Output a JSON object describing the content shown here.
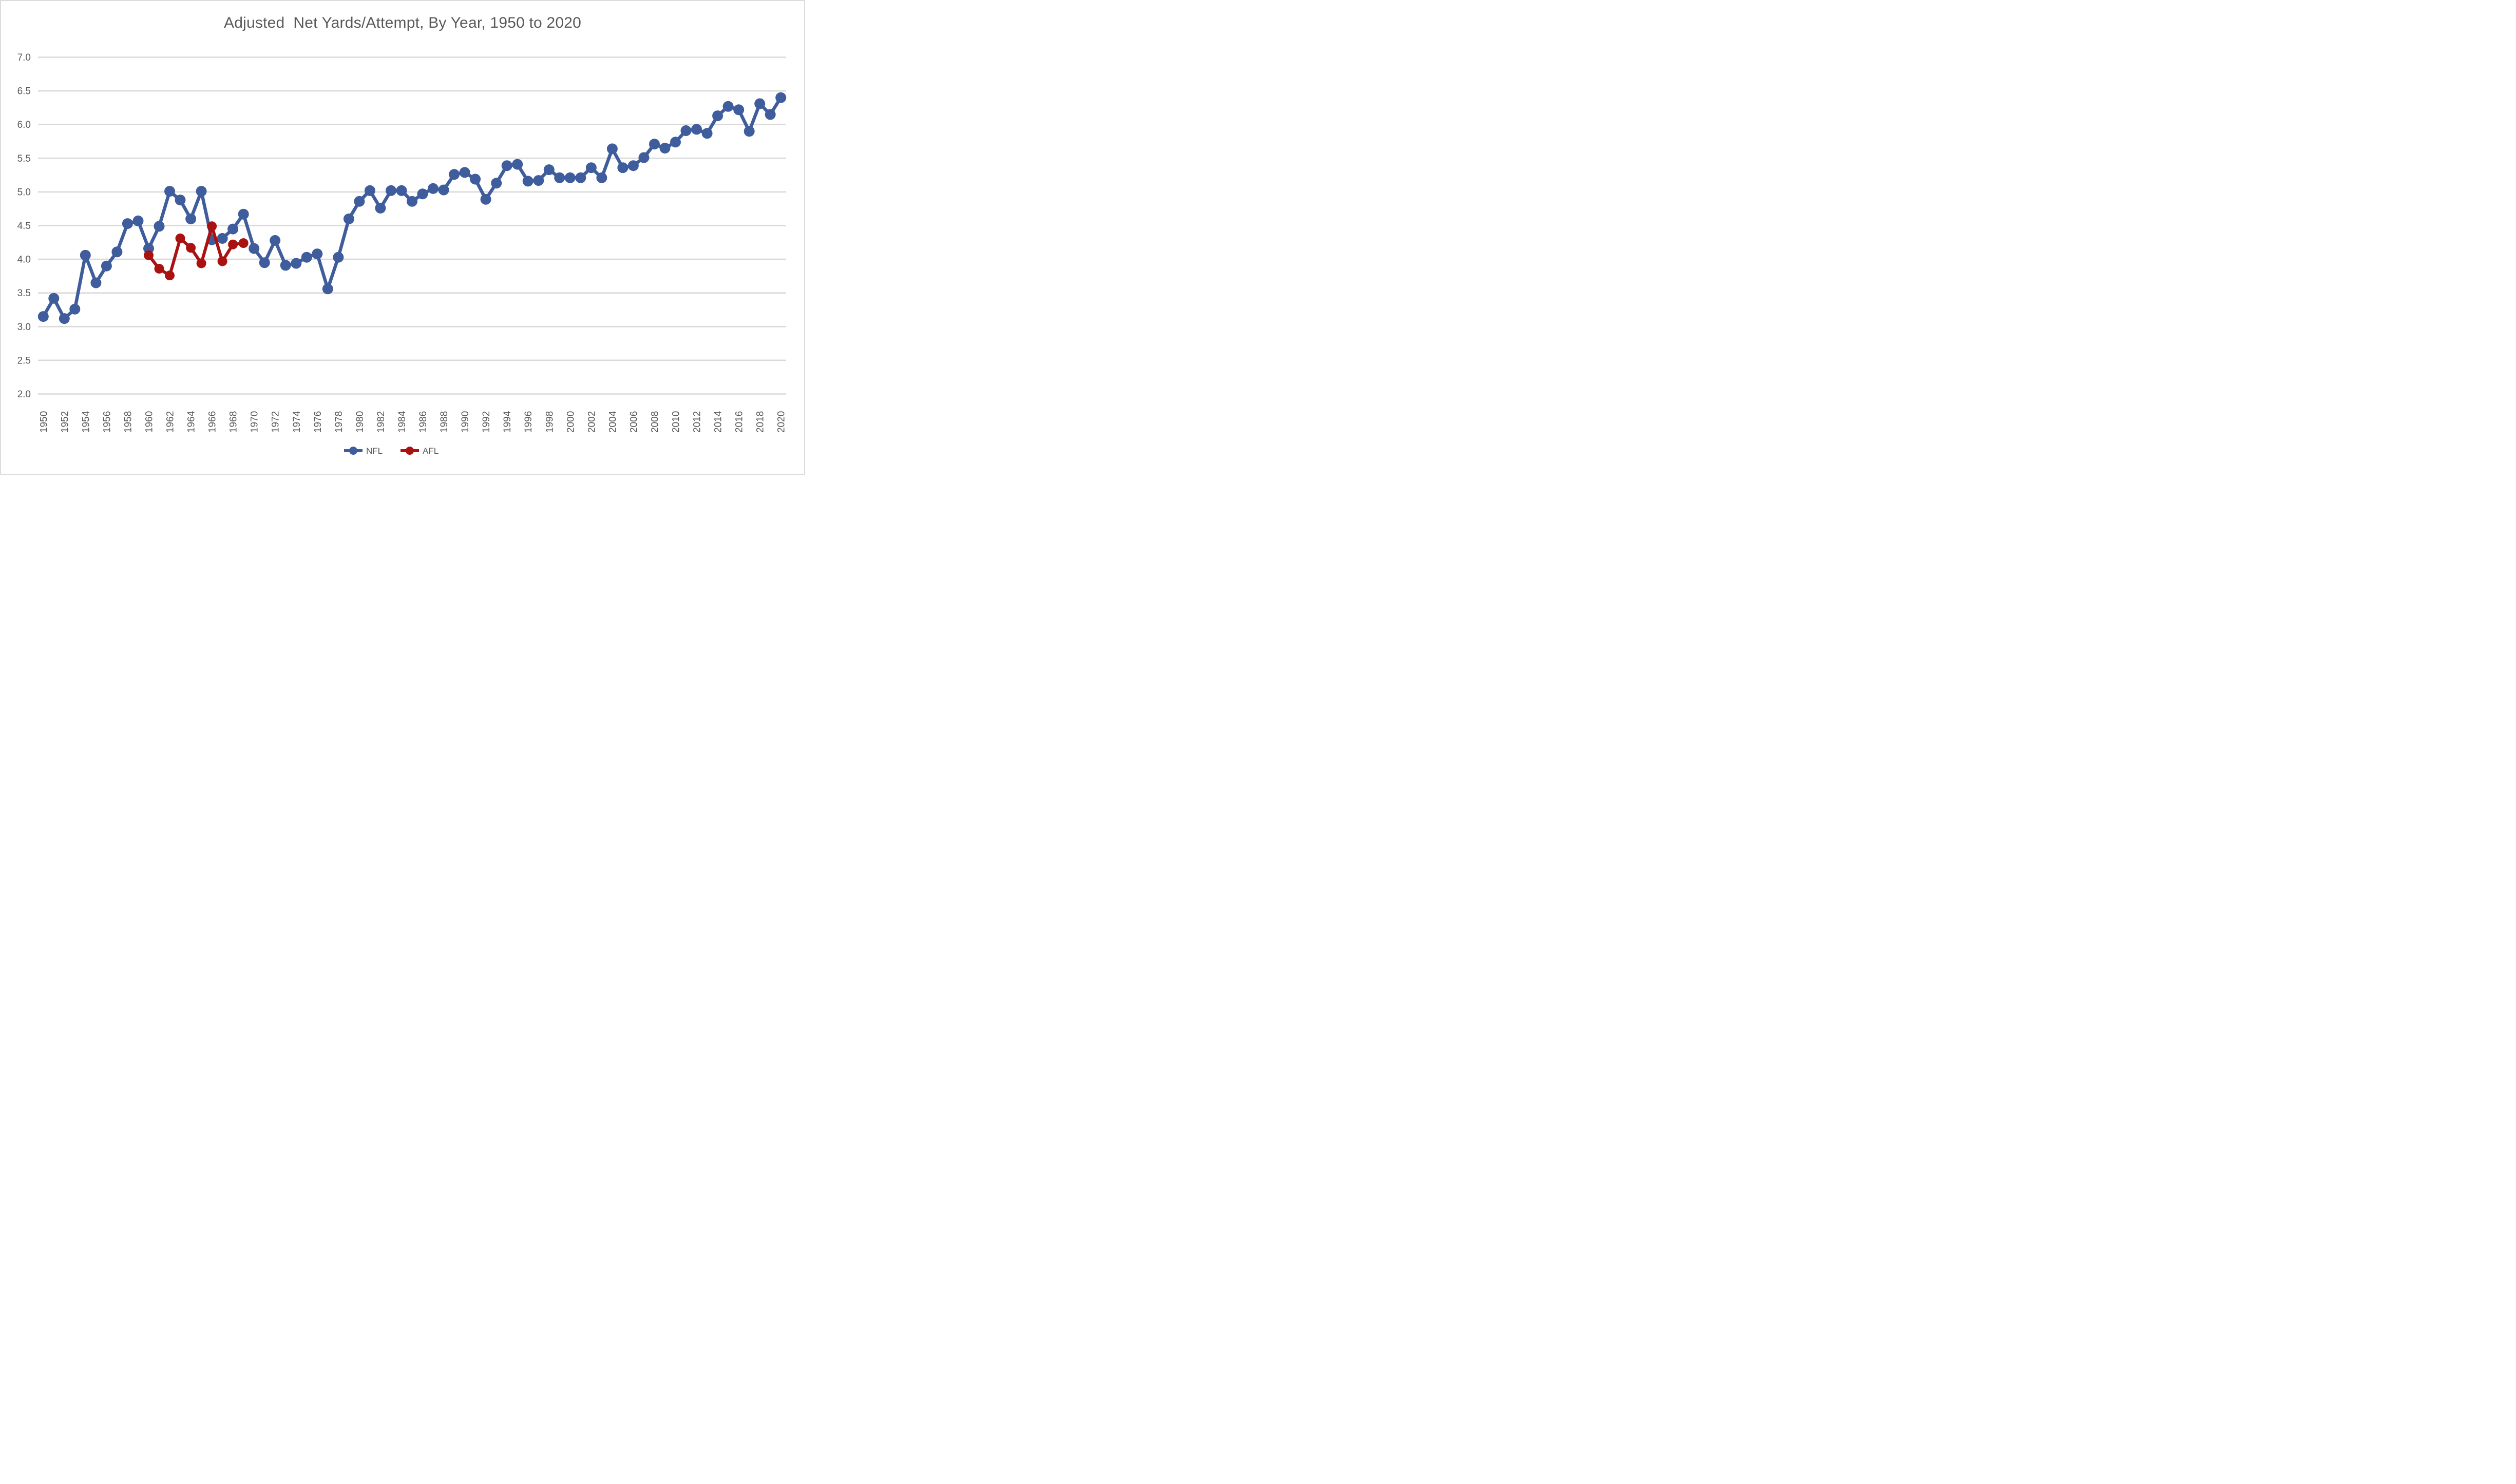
{
  "title": "Adjusted  Net Yards/Attempt, By Year, 1950 to 2020",
  "colors": {
    "nfl": "#3F5D9C",
    "afl": "#AA1111",
    "gridline": "#D9D9D9",
    "axis_text": "#595959",
    "title_text": "#595959",
    "background": "#FFFFFF",
    "border": "#DCDCDC"
  },
  "legend": {
    "items": [
      {
        "label": "NFL",
        "color": "#3F5D9C"
      },
      {
        "label": "AFL",
        "color": "#AA1111"
      }
    ],
    "position": "bottom-center"
  },
  "chart_data": {
    "type": "line",
    "title": "Adjusted  Net Yards/Attempt, By Year, 1950 to 2020",
    "xlabel": "",
    "ylabel": "",
    "ylim": [
      2.0,
      7.0
    ],
    "ytick_step": 0.5,
    "ytick_labels": [
      "7.0",
      "6.5",
      "6.0",
      "5.5",
      "5.0",
      "4.5",
      "4.0",
      "3.5",
      "3.0",
      "2.5",
      "2.0"
    ],
    "xtick_labels": [
      "1950",
      "1952",
      "1954",
      "1956",
      "1958",
      "1960",
      "1962",
      "1964",
      "1966",
      "1968",
      "1970",
      "1972",
      "1974",
      "1976",
      "1978",
      "1980",
      "1982",
      "1984",
      "1986",
      "1988",
      "1990",
      "1992",
      "1994",
      "1996",
      "1998",
      "2000",
      "2002",
      "2004",
      "2006",
      "2008",
      "2010",
      "2012",
      "2014",
      "2016",
      "2018",
      "2020"
    ],
    "grid": "horizontal-only",
    "legend_position": "bottom",
    "series": [
      {
        "name": "NFL",
        "color": "#3F5D9C",
        "x": [
          1950,
          1951,
          1952,
          1953,
          1954,
          1955,
          1956,
          1957,
          1958,
          1959,
          1960,
          1961,
          1962,
          1963,
          1964,
          1965,
          1966,
          1967,
          1968,
          1969,
          1970,
          1971,
          1972,
          1973,
          1974,
          1975,
          1976,
          1977,
          1978,
          1979,
          1980,
          1981,
          1982,
          1983,
          1984,
          1985,
          1986,
          1987,
          1988,
          1989,
          1990,
          1991,
          1992,
          1993,
          1994,
          1995,
          1996,
          1997,
          1998,
          1999,
          2000,
          2001,
          2002,
          2003,
          2004,
          2005,
          2006,
          2007,
          2008,
          2009,
          2010,
          2011,
          2012,
          2013,
          2014,
          2015,
          2016,
          2017,
          2018,
          2019,
          2020
        ],
        "y": [
          3.15,
          3.42,
          3.12,
          3.26,
          4.06,
          3.65,
          3.9,
          4.11,
          4.53,
          4.57,
          4.16,
          4.49,
          5.01,
          4.88,
          4.6,
          5.01,
          4.29,
          4.31,
          4.45,
          4.67,
          4.16,
          3.95,
          4.28,
          3.91,
          3.94,
          4.03,
          4.08,
          3.56,
          4.03,
          4.6,
          4.86,
          5.02,
          4.76,
          5.02,
          5.02,
          4.86,
          4.97,
          5.05,
          5.03,
          5.26,
          5.29,
          5.19,
          4.89,
          5.13,
          5.39,
          5.41,
          5.16,
          5.17,
          5.33,
          5.21,
          5.21,
          5.21,
          5.36,
          5.21,
          5.64,
          5.36,
          5.39,
          5.51,
          5.71,
          5.65,
          5.74,
          5.91,
          5.93,
          5.87,
          6.13,
          6.27,
          6.22,
          5.9,
          6.31,
          6.15,
          6.4
        ]
      },
      {
        "name": "AFL",
        "color": "#AA1111",
        "x": [
          1960,
          1961,
          1962,
          1963,
          1964,
          1965,
          1966,
          1967,
          1968,
          1969
        ],
        "y": [
          4.06,
          3.86,
          3.76,
          4.31,
          4.17,
          3.94,
          4.49,
          3.97,
          4.22,
          4.24
        ]
      }
    ]
  }
}
